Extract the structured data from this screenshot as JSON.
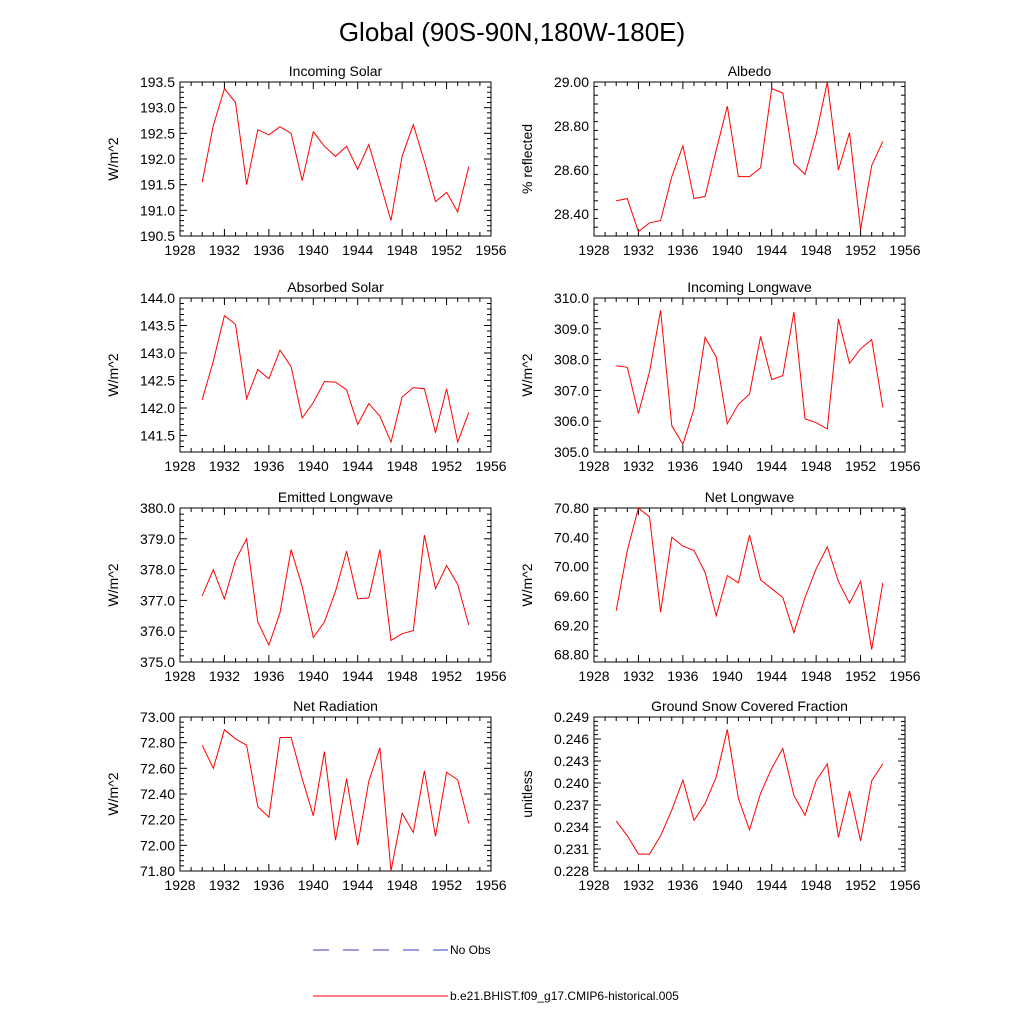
{
  "title": "Global (90S-90N,180W-180E)",
  "chart_data": [
    {
      "type": "line",
      "title": "Incoming Solar",
      "ylabel": "W/m^2",
      "xlim": [
        1928,
        1956
      ],
      "xticks": [
        "1928",
        "1932",
        "1936",
        "1940",
        "1944",
        "1948",
        "1952",
        "1956"
      ],
      "ylim": [
        190.5,
        193.5
      ],
      "yticks": [
        "190.5",
        "191.0",
        "191.5",
        "192.0",
        "192.5",
        "193.0",
        "193.5"
      ],
      "x": [
        1930,
        1931,
        1932,
        1933,
        1934,
        1935,
        1936,
        1937,
        1938,
        1939,
        1940,
        1941,
        1942,
        1943,
        1944,
        1945,
        1946,
        1947,
        1948,
        1949,
        1950,
        1951,
        1952,
        1953,
        1954
      ],
      "values": [
        191.55,
        192.65,
        193.37,
        193.1,
        191.5,
        192.57,
        192.47,
        192.63,
        192.5,
        191.58,
        192.53,
        192.25,
        192.05,
        192.25,
        191.8,
        192.28,
        191.55,
        190.8,
        192.05,
        192.67,
        191.95,
        191.17,
        191.35,
        190.97,
        191.85
      ]
    },
    {
      "type": "line",
      "title": "Albedo",
      "ylabel": "% reflected",
      "xlim": [
        1928,
        1956
      ],
      "xticks": [
        "1928",
        "1932",
        "1936",
        "1940",
        "1944",
        "1948",
        "1952",
        "1956"
      ],
      "ylim": [
        28.3,
        29.0
      ],
      "yticks": [
        "28.40",
        "28.60",
        "28.80",
        "29.00"
      ],
      "x": [
        1930,
        1931,
        1932,
        1933,
        1934,
        1935,
        1936,
        1937,
        1938,
        1939,
        1940,
        1941,
        1942,
        1943,
        1944,
        1945,
        1946,
        1947,
        1948,
        1949,
        1950,
        1951,
        1952,
        1953,
        1954
      ],
      "values": [
        28.46,
        28.47,
        28.32,
        28.36,
        28.37,
        28.57,
        28.71,
        28.47,
        28.48,
        28.69,
        28.89,
        28.57,
        28.57,
        28.61,
        28.97,
        28.95,
        28.63,
        28.58,
        28.76,
        29.0,
        28.6,
        28.77,
        28.33,
        28.62,
        28.73
      ]
    },
    {
      "type": "line",
      "title": "Absorbed Solar",
      "ylabel": "W/m^2",
      "xlim": [
        1928,
        1956
      ],
      "xticks": [
        "1928",
        "1932",
        "1936",
        "1940",
        "1944",
        "1948",
        "1952",
        "1956"
      ],
      "ylim": [
        141.2,
        144.0
      ],
      "yticks": [
        "141.5",
        "142.0",
        "142.5",
        "143.0",
        "143.5",
        "144.0"
      ],
      "x": [
        1930,
        1931,
        1932,
        1933,
        1934,
        1935,
        1936,
        1937,
        1938,
        1939,
        1940,
        1941,
        1942,
        1943,
        1944,
        1945,
        1946,
        1947,
        1948,
        1949,
        1950,
        1951,
        1952,
        1953,
        1954
      ],
      "values": [
        142.15,
        142.85,
        143.68,
        143.52,
        142.17,
        142.7,
        142.53,
        143.05,
        142.75,
        141.82,
        142.1,
        142.48,
        142.47,
        142.33,
        141.7,
        142.08,
        141.85,
        141.38,
        142.2,
        142.37,
        142.35,
        141.55,
        142.35,
        141.38,
        141.92
      ]
    },
    {
      "type": "line",
      "title": "Incoming Longwave",
      "ylabel": "W/m^2",
      "xlim": [
        1928,
        1956
      ],
      "xticks": [
        "1928",
        "1932",
        "1936",
        "1940",
        "1944",
        "1948",
        "1952",
        "1956"
      ],
      "ylim": [
        305.0,
        310.0
      ],
      "yticks": [
        "305.0",
        "306.0",
        "307.0",
        "308.0",
        "309.0",
        "310.0"
      ],
      "x": [
        1930,
        1931,
        1932,
        1933,
        1934,
        1935,
        1936,
        1937,
        1938,
        1939,
        1940,
        1941,
        1942,
        1943,
        1944,
        1945,
        1946,
        1947,
        1948,
        1949,
        1950,
        1951,
        1952,
        1953,
        1954
      ],
      "values": [
        307.8,
        307.75,
        306.25,
        307.6,
        309.6,
        305.85,
        305.25,
        306.4,
        308.72,
        308.08,
        305.92,
        306.55,
        306.88,
        308.75,
        307.35,
        307.48,
        309.55,
        306.08,
        305.95,
        305.75,
        309.32,
        307.88,
        308.35,
        308.65,
        306.45
      ]
    },
    {
      "type": "line",
      "title": "Emitted Longwave",
      "ylabel": "W/m^2",
      "xlim": [
        1928,
        1956
      ],
      "xticks": [
        "1928",
        "1932",
        "1936",
        "1940",
        "1944",
        "1948",
        "1952",
        "1956"
      ],
      "ylim": [
        375.0,
        380.0
      ],
      "yticks": [
        "375.0",
        "376.0",
        "377.0",
        "378.0",
        "379.0",
        "380.0"
      ],
      "x": [
        1930,
        1931,
        1932,
        1933,
        1934,
        1935,
        1936,
        1937,
        1938,
        1939,
        1940,
        1941,
        1942,
        1943,
        1944,
        1945,
        1946,
        1947,
        1948,
        1949,
        1950,
        1951,
        1952,
        1953,
        1954
      ],
      "values": [
        377.15,
        378.0,
        377.05,
        378.3,
        379.0,
        376.3,
        375.55,
        376.6,
        378.65,
        377.45,
        375.8,
        376.3,
        377.3,
        378.6,
        377.05,
        377.08,
        378.65,
        375.7,
        375.92,
        376.02,
        379.12,
        377.38,
        378.13,
        377.52,
        376.2
      ]
    },
    {
      "type": "line",
      "title": "Net Longwave",
      "ylabel": "W/m^2",
      "xlim": [
        1928,
        1956
      ],
      "xticks": [
        "1928",
        "1932",
        "1936",
        "1940",
        "1944",
        "1948",
        "1952",
        "1956"
      ],
      "ylim": [
        68.7,
        70.8
      ],
      "yticks": [
        "68.80",
        "69.20",
        "69.60",
        "70.00",
        "70.40",
        "70.80"
      ],
      "x": [
        1930,
        1931,
        1932,
        1933,
        1934,
        1935,
        1936,
        1937,
        1938,
        1939,
        1940,
        1941,
        1942,
        1943,
        1944,
        1945,
        1946,
        1947,
        1948,
        1949,
        1950,
        1951,
        1952,
        1953,
        1954
      ],
      "values": [
        69.4,
        70.22,
        70.8,
        70.68,
        69.38,
        70.4,
        70.28,
        70.22,
        69.92,
        69.33,
        69.88,
        69.78,
        70.43,
        69.82,
        69.7,
        69.58,
        69.1,
        69.58,
        69.97,
        70.27,
        69.8,
        69.5,
        69.8,
        68.87,
        69.78
      ]
    },
    {
      "type": "line",
      "title": "Net Radiation",
      "ylabel": "W/m^2",
      "xlim": [
        1928,
        1956
      ],
      "xticks": [
        "1928",
        "1932",
        "1936",
        "1940",
        "1944",
        "1948",
        "1952",
        "1956"
      ],
      "ylim": [
        71.8,
        73.0
      ],
      "yticks": [
        "71.80",
        "72.00",
        "72.20",
        "72.40",
        "72.60",
        "72.80",
        "73.00"
      ],
      "x": [
        1930,
        1931,
        1932,
        1933,
        1934,
        1935,
        1936,
        1937,
        1938,
        1939,
        1940,
        1941,
        1942,
        1943,
        1944,
        1945,
        1946,
        1947,
        1948,
        1949,
        1950,
        1951,
        1952,
        1953,
        1954
      ],
      "values": [
        72.78,
        72.6,
        72.9,
        72.83,
        72.78,
        72.3,
        72.22,
        72.84,
        72.84,
        72.52,
        72.23,
        72.73,
        72.04,
        72.52,
        72.0,
        72.5,
        72.76,
        71.8,
        72.25,
        72.1,
        72.58,
        72.07,
        72.57,
        72.51,
        72.17
      ]
    },
    {
      "type": "line",
      "title": "Ground Snow Covered Fraction",
      "ylabel": "unitless",
      "xlim": [
        1928,
        1956
      ],
      "xticks": [
        "1928",
        "1932",
        "1936",
        "1940",
        "1944",
        "1948",
        "1952",
        "1956"
      ],
      "ylim": [
        0.228,
        0.249
      ],
      "yticks": [
        "0.228",
        "0.231",
        "0.234",
        "0.237",
        "0.240",
        "0.243",
        "0.246",
        "0.249"
      ],
      "x": [
        1930,
        1931,
        1932,
        1933,
        1934,
        1935,
        1936,
        1937,
        1938,
        1939,
        1940,
        1941,
        1942,
        1943,
        1944,
        1945,
        1946,
        1947,
        1948,
        1949,
        1950,
        1951,
        1952,
        1953,
        1954
      ],
      "values": [
        0.2348,
        0.2328,
        0.2303,
        0.2303,
        0.2328,
        0.2363,
        0.2404,
        0.2349,
        0.2372,
        0.2408,
        0.2473,
        0.2379,
        0.2336,
        0.2386,
        0.242,
        0.2447,
        0.2383,
        0.2356,
        0.2403,
        0.2426,
        0.2326,
        0.2389,
        0.2321,
        0.2403,
        0.2426
      ]
    }
  ],
  "legend": [
    {
      "label": "No Obs",
      "color": "#3a3ac0",
      "style": "dashed"
    },
    {
      "label": "b.e21.BHIST.f09_g17.CMIP6-historical.005",
      "color": "#ff0000",
      "style": "solid"
    }
  ],
  "line_color": "#ff0000"
}
